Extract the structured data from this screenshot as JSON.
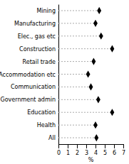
{
  "chart_data": {
    "type": "dot",
    "orientation": "horizontal",
    "categories": [
      "Mining",
      "Manufacturing",
      "Elec., gas etc",
      "Construction",
      "Retail trade",
      "Accommodation etc",
      "Communication",
      "Government admin",
      "Education",
      "Health",
      "All"
    ],
    "values": [
      4.4,
      4.0,
      4.6,
      5.8,
      3.8,
      3.2,
      3.5,
      4.3,
      5.8,
      4.0,
      4.1
    ],
    "x_label": "%",
    "xlim": [
      0,
      7
    ],
    "xticks": [
      0,
      1,
      2,
      3,
      4,
      5,
      6,
      7
    ],
    "color": "#000000",
    "marker": "diamond",
    "line_style": "dashed",
    "grid": false
  }
}
